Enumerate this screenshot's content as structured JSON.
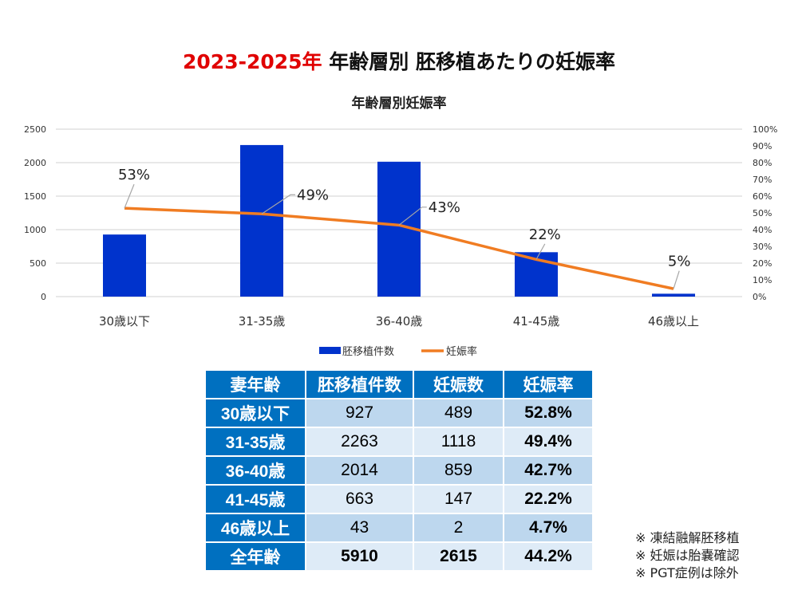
{
  "title": {
    "red_part": "2023-2025年",
    "black_part": " 年齢層別 胚移植あたりの妊娠率"
  },
  "chart_data": {
    "type": "bar+line",
    "title": "年齢層別妊娠率",
    "categories": [
      "30歳以下",
      "31-35歳",
      "36-40歳",
      "41-45歳",
      "46歳以上"
    ],
    "series": [
      {
        "name": "胚移植件数",
        "type": "bar",
        "axis": "left",
        "color": "#0033cc",
        "values": [
          927,
          2263,
          2014,
          663,
          43
        ]
      },
      {
        "name": "妊娠率",
        "type": "line",
        "axis": "right",
        "color": "#f07c22",
        "values": [
          52.8,
          49.4,
          42.7,
          22.2,
          4.7
        ],
        "data_labels": [
          "53%",
          "49%",
          "43%",
          "22%",
          "5%"
        ]
      }
    ],
    "left_axis": {
      "ylim": [
        0,
        2500
      ],
      "ticks": [
        "0",
        "500",
        "1000",
        "1500",
        "2000",
        "2500"
      ]
    },
    "right_axis": {
      "ylim": [
        0,
        100
      ],
      "ticks": [
        "0%",
        "10%",
        "20%",
        "30%",
        "40%",
        "50%",
        "60%",
        "70%",
        "80%",
        "90%",
        "100%"
      ]
    },
    "grid": true,
    "legend": "bottom"
  },
  "table": {
    "headers": [
      "妻年齢",
      "胚移植件数",
      "妊娠数",
      "妊娠率"
    ],
    "rows": [
      [
        "30歳以下",
        "927",
        "489",
        "52.8%"
      ],
      [
        "31-35歳",
        "2263",
        "1118",
        "49.4%"
      ],
      [
        "36-40歳",
        "2014",
        "859",
        "42.7%"
      ],
      [
        "41-45歳",
        "663",
        "147",
        "22.2%"
      ],
      [
        "46歳以上",
        "43",
        "2",
        "4.7%"
      ]
    ],
    "total": [
      "全年齢",
      "5910",
      "2615",
      "44.2%"
    ]
  },
  "notes": [
    "※ 凍結融解胚移植",
    "※ 妊娠は胎嚢確認",
    "※ PGT症例は除外"
  ]
}
